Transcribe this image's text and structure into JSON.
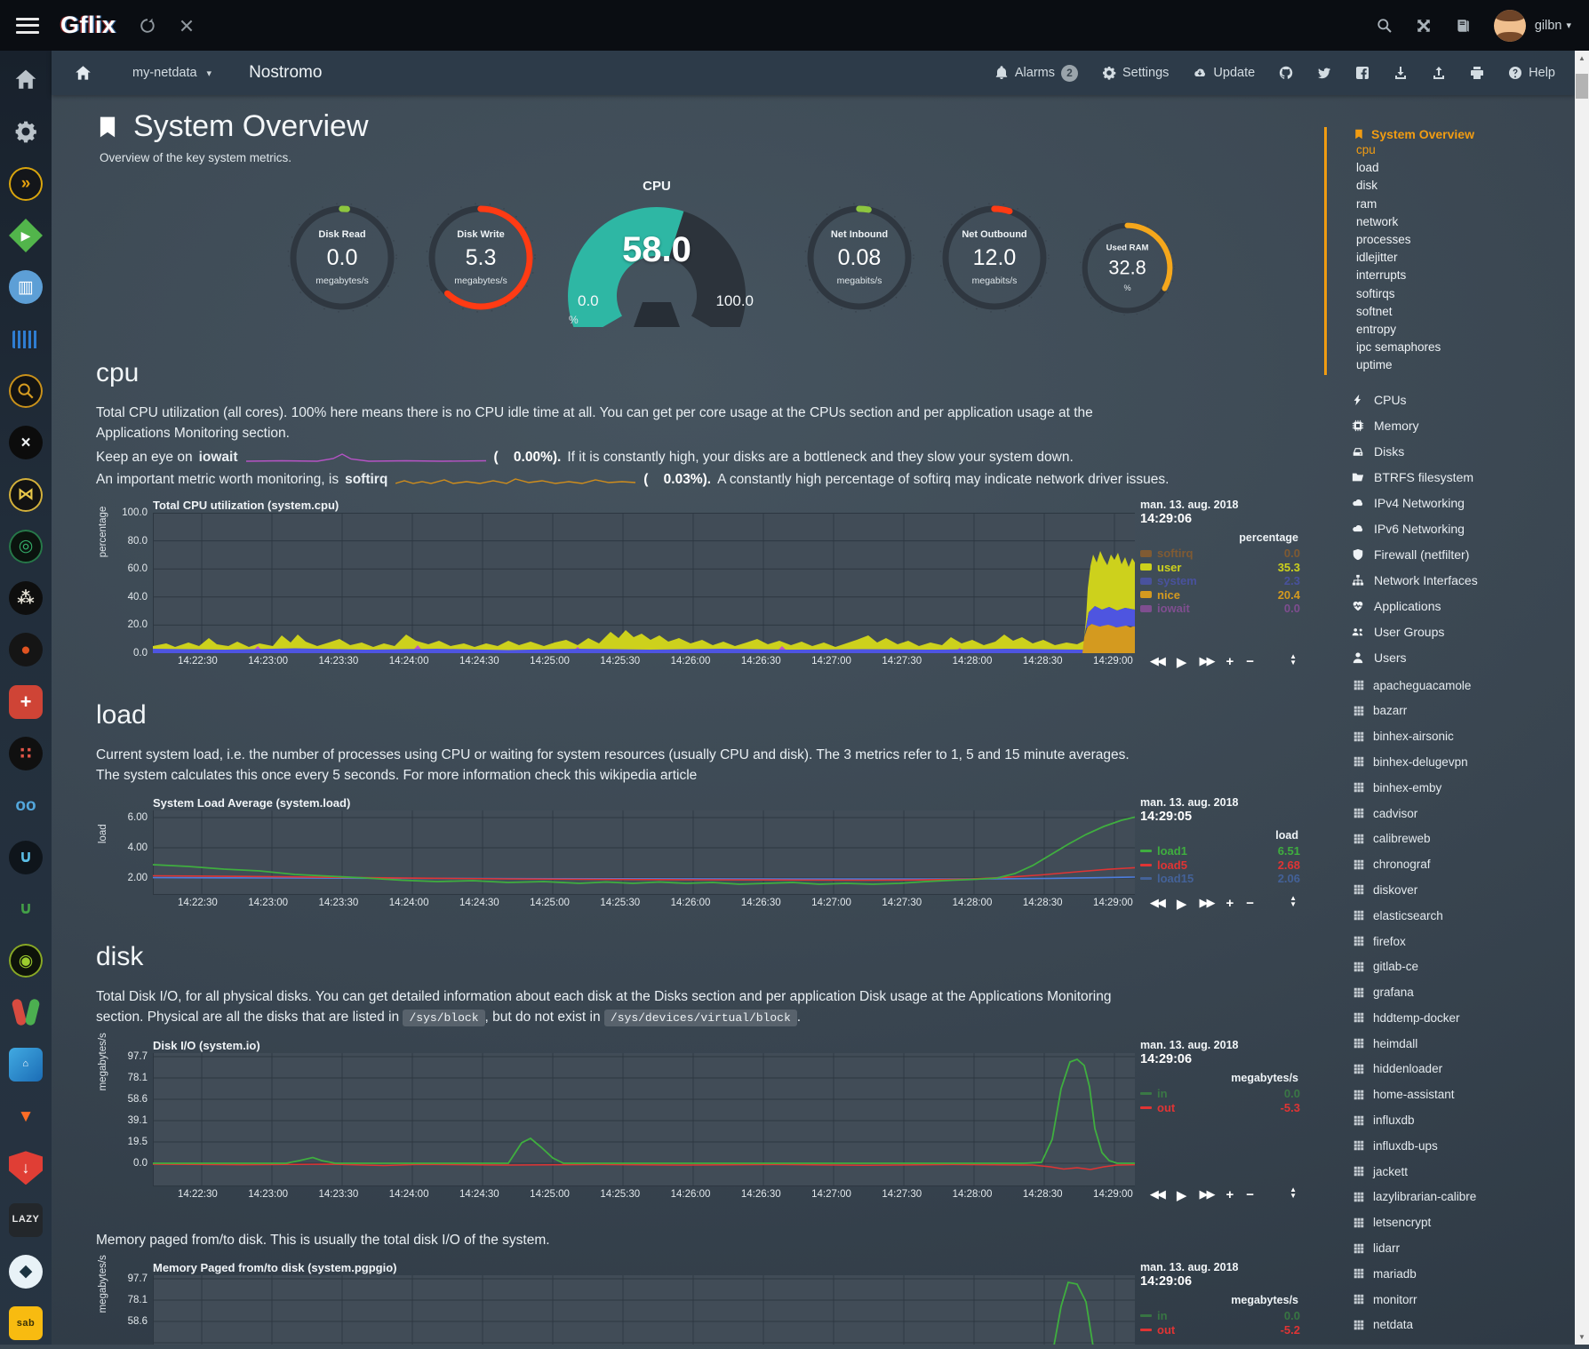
{
  "topbar": {
    "title": "Gflix",
    "user": "gilbn"
  },
  "icons": {
    "topbar": [
      "menu-icon",
      "refresh-icon",
      "close-icon",
      "search-icon",
      "fullscreen-icon",
      "changelog-icon",
      "caret-down-icon"
    ],
    "nd_header": [
      "home-icon",
      "caret-down-icon",
      "bell-icon",
      "gear-icon",
      "cloud-download-icon",
      "github-icon",
      "twitter-icon",
      "facebook-icon",
      "download-icon",
      "upload-icon",
      "print-icon",
      "question-icon"
    ]
  },
  "nd_header": {
    "server": "my-netdata",
    "host": "Nostromo",
    "alarms": "Alarms",
    "alarms_count": "2",
    "settings": "Settings",
    "update": "Update",
    "help": "Help"
  },
  "overview": {
    "title": "System Overview",
    "subtitle": "Overview of the key system metrics."
  },
  "gauges": {
    "items": [
      {
        "label": "Disk Read",
        "value": "0.0",
        "unit": "megabytes/s",
        "arc_color": "#8dc63f",
        "arc_dash": "1.6 98.4"
      },
      {
        "label": "Disk Write",
        "value": "5.3",
        "unit": "megabytes/s",
        "arc_color": "#ff3b14",
        "arc_dash": "62 38"
      },
      {
        "label": "Net Inbound",
        "value": "0.08",
        "unit": "megabits/s",
        "arc_color": "#8dc63f",
        "arc_dash": "3 97"
      },
      {
        "label": "Net Outbound",
        "value": "12.0",
        "unit": "megabits/s",
        "arc_color": "#ff3b14",
        "arc_dash": "5 95"
      },
      {
        "label": "Used RAM",
        "value": "32.8",
        "unit": "%",
        "arc_color": "#f5a71c",
        "arc_dash": "33 67"
      }
    ],
    "cpu": {
      "label": "CPU",
      "value": "58.0",
      "min": "0.0",
      "max": "100.0",
      "unit": "%",
      "fill_color": "#2eb7a4",
      "percent": 58
    }
  },
  "cpu_section": {
    "heading": "cpu",
    "para": "Total CPU utilization (all cores). 100% here means there is no CPU idle time at all. You can get per core usage at the CPUs section and per application usage at the Applications Monitoring section.",
    "iowait_pre": "Keep an eye on",
    "iowait_term": "iowait",
    "iowait_val": "(    0.00%).",
    "iowait_post": "If it is constantly high, your disks are a bottleneck and they slow your system down.",
    "softirq_pre": "An important metric worth monitoring, is",
    "softirq_term": "softirq",
    "softirq_val": "(    0.03%).",
    "softirq_post": "A constantly high percentage of softirq may indicate network driver issues."
  },
  "load_section": {
    "heading": "load",
    "para": "Current system load, i.e. the number of processes using CPU or waiting for system resources (usually CPU and disk). The 3 metrics refer to 1, 5 and 15 minute averages. The system calculates this once every 5 seconds. For more information check this wikipedia article"
  },
  "disk_section": {
    "heading": "disk",
    "para1": "Total Disk I/O, for all physical disks. You can get detailed information about each disk at the Disks section and per application Disk usage at the Applications Monitoring section. Physical are all the disks that are listed in",
    "code1": "/sys/block",
    "para2": ", but do not exist in",
    "code2": "/sys/devices/virtual/block",
    "para3": "."
  },
  "pgpgio_section": {
    "para": "Memory paged from/to disk. This is usually the total disk I/O of the system."
  },
  "x_labels": [
    "14:22:30",
    "14:23:00",
    "14:23:30",
    "14:24:00",
    "14:24:30",
    "14:25:00",
    "14:25:30",
    "14:26:00",
    "14:26:30",
    "14:27:00",
    "14:27:30",
    "14:28:00",
    "14:28:30",
    "14:29:00"
  ],
  "toolbox": {
    "rewind": "◀◀",
    "play": "▶",
    "forward": "▶▶",
    "zoomin": "+",
    "zoomout": "−"
  },
  "charts": [
    {
      "title": "Total CPU utilization (system.cpu)",
      "date": "man. 13. aug. 2018",
      "time": "14:29:06",
      "unit": "percentage",
      "unit_header": "percentage",
      "y_labels": [
        "100.0",
        "80.0",
        "60.0",
        "40.0",
        "20.0",
        "0.0"
      ],
      "legend": [
        {
          "name": "softirq",
          "value": "0.0",
          "color": "#c06a10",
          "dim": true
        },
        {
          "name": "user",
          "value": "35.3",
          "color": "#cdd11c"
        },
        {
          "name": "system",
          "value": "2.3",
          "color": "#5358e2",
          "dim": true
        },
        {
          "name": "nice",
          "value": "20.4",
          "color": "#d49a1f"
        },
        {
          "name": "iowait",
          "value": "0.0",
          "color": "#bf51c9",
          "dim": true
        }
      ]
    },
    {
      "title": "System Load Average (system.load)",
      "date": "man. 13. aug. 2018",
      "time": "14:29:05",
      "unit": "load",
      "unit_header": "load",
      "y_labels": [
        "6.00",
        "4.00",
        "2.00"
      ],
      "legend": [
        {
          "name": "load1",
          "value": "6.51",
          "color": "#3fae3f"
        },
        {
          "name": "load5",
          "value": "2.68",
          "color": "#e03434"
        },
        {
          "name": "load15",
          "value": "2.06",
          "color": "#4d7dde",
          "dim": true
        }
      ]
    },
    {
      "title": "Disk I/O (system.io)",
      "date": "man. 13. aug. 2018",
      "time": "14:29:06",
      "unit": "megabytes/s",
      "unit_header": "megabytes/s",
      "y_labels": [
        "97.7",
        "78.1",
        "58.6",
        "39.1",
        "19.5",
        "0.0"
      ],
      "legend": [
        {
          "name": "in",
          "value": "0.0",
          "color": "#3fae3f",
          "dim": true
        },
        {
          "name": "out",
          "value": "-5.3",
          "color": "#e03434"
        }
      ]
    },
    {
      "title": "Memory Paged from/to disk (system.pgpgio)",
      "date": "man. 13. aug. 2018",
      "time": "14:29:06",
      "unit": "megabytes/s",
      "unit_header": "megabytes/s",
      "y_labels": [
        "97.7",
        "78.1",
        "58.6"
      ],
      "legend": [
        {
          "name": "in",
          "value": "0.0",
          "color": "#3fae3f",
          "dim": true
        },
        {
          "name": "out",
          "value": "-5.2",
          "color": "#e03434"
        }
      ]
    }
  ],
  "chart_data": [
    {
      "type": "area",
      "title": "Total CPU utilization (system.cpu)",
      "ylabel": "percentage",
      "ylim": [
        0,
        100
      ],
      "x": [
        "14:22:30",
        "14:29:00"
      ],
      "series": [
        {
          "name": "softirq",
          "now": 0.0
        },
        {
          "name": "user",
          "now": 35.3
        },
        {
          "name": "system",
          "now": 2.3
        },
        {
          "name": "nice",
          "now": 20.4
        },
        {
          "name": "iowait",
          "now": 0.0
        }
      ],
      "shape_note": "user ~3-12% with small spikes until 14:28:35, then stacked burst user+nice+system ~75% until 14:29:06"
    },
    {
      "type": "line",
      "title": "System Load Average (system.load)",
      "ylabel": "load",
      "ylim": [
        1,
        6.6
      ],
      "series": [
        {
          "name": "load1",
          "now": 6.51
        },
        {
          "name": "load5",
          "now": 2.68
        },
        {
          "name": "load15",
          "now": 2.06
        }
      ],
      "shape_note": "load1 declines 2.9→1.5 then spikes to 6.51 at right edge; load5/load15 near 2"
    },
    {
      "type": "line",
      "title": "Disk I/O (system.io)",
      "ylabel": "megabytes/s",
      "ylim": [
        -20,
        97.7
      ],
      "series": [
        {
          "name": "in",
          "now": 0.0
        },
        {
          "name": "out",
          "now": -5.3
        }
      ],
      "shape_note": "in flat ~0 with spike to ~95 MB/s at 14:28:30; out slightly negative"
    },
    {
      "type": "line",
      "title": "Memory Paged from/to disk (system.pgpgio)",
      "ylabel": "megabytes/s",
      "ylim": [
        -20,
        97.7
      ],
      "series": [
        {
          "name": "in",
          "now": 0.0
        },
        {
          "name": "out",
          "now": -5.2
        }
      ],
      "shape_note": "same spike at 14:28:30, chart cut off at page bottom"
    }
  ],
  "right_sidebar": {
    "overview_label": "System Overview",
    "overview_items": [
      {
        "label": "cpu",
        "active": true
      },
      {
        "label": "load"
      },
      {
        "label": "disk"
      },
      {
        "label": "ram"
      },
      {
        "label": "network"
      },
      {
        "label": "processes"
      },
      {
        "label": "idlejitter"
      },
      {
        "label": "interrupts"
      },
      {
        "label": "softirqs"
      },
      {
        "label": "softnet"
      },
      {
        "label": "entropy"
      },
      {
        "label": "ipc semaphores"
      },
      {
        "label": "uptime"
      }
    ],
    "sections": [
      {
        "icon": "bolt",
        "label": "CPUs"
      },
      {
        "icon": "memory",
        "label": "Memory"
      },
      {
        "icon": "hdd",
        "label": "Disks"
      },
      {
        "icon": "folder",
        "label": "BTRFS filesystem"
      },
      {
        "icon": "cloud",
        "label": "IPv4 Networking"
      },
      {
        "icon": "cloud",
        "label": "IPv6 Networking"
      },
      {
        "icon": "shield",
        "label": "Firewall (netfilter)"
      },
      {
        "icon": "sitemap",
        "label": "Network Interfaces"
      },
      {
        "icon": "heartbeat",
        "label": "Applications"
      },
      {
        "icon": "users",
        "label": "User Groups"
      },
      {
        "icon": "user",
        "label": "Users"
      }
    ],
    "apps": [
      {
        "icon": "grid",
        "label": "apacheguacamole"
      },
      {
        "icon": "grid",
        "label": "bazarr"
      },
      {
        "icon": "grid",
        "label": "binhex-airsonic"
      },
      {
        "icon": "grid",
        "label": "binhex-delugevpn"
      },
      {
        "icon": "grid",
        "label": "binhex-emby"
      },
      {
        "icon": "grid",
        "label": "cadvisor"
      },
      {
        "icon": "grid",
        "label": "calibreweb"
      },
      {
        "icon": "grid",
        "label": "chronograf"
      },
      {
        "icon": "grid",
        "label": "diskover"
      },
      {
        "icon": "grid",
        "label": "elasticsearch"
      },
      {
        "icon": "grid",
        "label": "firefox"
      },
      {
        "icon": "grid",
        "label": "gitlab-ce"
      },
      {
        "icon": "grid",
        "label": "grafana"
      },
      {
        "icon": "grid",
        "label": "hddtemp-docker"
      },
      {
        "icon": "grid",
        "label": "heimdall"
      },
      {
        "icon": "grid",
        "label": "hiddenloader"
      },
      {
        "icon": "grid",
        "label": "home-assistant"
      },
      {
        "icon": "grid",
        "label": "influxdb"
      },
      {
        "icon": "grid",
        "label": "influxdb-ups"
      },
      {
        "icon": "grid",
        "label": "jackett"
      },
      {
        "icon": "grid",
        "label": "lazylibrarian-calibre"
      },
      {
        "icon": "grid",
        "label": "letsencrypt"
      },
      {
        "icon": "grid",
        "label": "lidarr"
      },
      {
        "icon": "grid",
        "label": "mariadb"
      },
      {
        "icon": "grid",
        "label": "monitorr"
      },
      {
        "icon": "grid",
        "label": "netdata"
      }
    ]
  },
  "left_sidebar": {
    "apps": [
      {
        "name": "home",
        "shape": "plain",
        "icon": "home",
        "fg": "#b9c2c9"
      },
      {
        "name": "settings-gear",
        "shape": "plain",
        "icon": "gear",
        "fg": "#b9c2c9"
      },
      {
        "name": "tautulli",
        "shape": "circle",
        "bg": "#14161a",
        "border": "#d9a50e",
        "glyph": "»",
        "fg": "#e5a00d"
      },
      {
        "name": "emby",
        "shape": "diamond",
        "bg": "#52b54b",
        "glyph": "▶",
        "fg": "#ffffff"
      },
      {
        "name": "media-library",
        "shape": "circle",
        "bg": "#5d9fd6",
        "glyph": "▥",
        "fg": "#ffffff"
      },
      {
        "name": "airsonic-waves",
        "shape": "bars",
        "fg": "#2f7dd1"
      },
      {
        "name": "jackett-magnifier",
        "shape": "circle",
        "bg": "#131313",
        "border": "#c9921c",
        "icon": "search",
        "fg": "#d79c20"
      },
      {
        "name": "x-app",
        "shape": "circle",
        "bg": "#0c0c0c",
        "glyph": "×",
        "fg": "#f0f3f5"
      },
      {
        "name": "bowtie-app",
        "shape": "circle",
        "bg": "#121212",
        "border": "#d3b13c",
        "glyph": "⋈",
        "fg": "#e8c84a"
      },
      {
        "name": "green-swirl-app",
        "shape": "circle",
        "bg": "#0b130e",
        "border": "#27784a",
        "glyph": "◎",
        "fg": "#35b06b"
      },
      {
        "name": "share-nodes-app",
        "shape": "circle",
        "bg": "#0e0e0e",
        "glyph": "⁂",
        "fg": "#e8e4d8"
      },
      {
        "name": "orange-dot-app",
        "shape": "circle",
        "bg": "#151515",
        "glyph": "●",
        "fg": "#df5321"
      },
      {
        "name": "red-key-app",
        "shape": "rsquare",
        "bg": "#cf4436",
        "glyph": "+",
        "fg": "#ffffff"
      },
      {
        "name": "red-dots-app",
        "shape": "circle",
        "bg": "#101010",
        "glyph": "∷",
        "fg": "#e05548"
      },
      {
        "name": "double-o-app",
        "shape": "plain",
        "label": "oo",
        "fg": "#53a7dc"
      },
      {
        "name": "blue-u-app",
        "shape": "circle",
        "bg": "#0f151b",
        "glyph": "∪",
        "fg": "#5bbde4"
      },
      {
        "name": "green-u-app",
        "shape": "plain",
        "glyph": "∪",
        "fg": "#43a047"
      },
      {
        "name": "green-ring-app",
        "shape": "circle",
        "bg": "#0e130a",
        "border": "#88a827",
        "glyph": "◉",
        "fg": "#9ccc2e"
      },
      {
        "name": "pills-app",
        "shape": "pills"
      },
      {
        "name": "heimdall-house",
        "shape": "tile",
        "bg": "linear-gradient(135deg,#41aae2,#1b6cb5)",
        "glyph": "⌂",
        "fg": "#ffffff"
      },
      {
        "name": "gitlab-fox",
        "shape": "plain",
        "glyph": "▼",
        "fg": "#fc6d26"
      },
      {
        "name": "red-shield-app",
        "shape": "shield",
        "bg": "#e03e35",
        "glyph": "↓",
        "fg": "#ffffff"
      },
      {
        "name": "lazylibrarian",
        "shape": "tile",
        "bg": "#23272b",
        "label": "LAZY",
        "fg": "#e8e8e8"
      },
      {
        "name": "influxdb-drop",
        "shape": "circle",
        "bg": "#e8f2f7",
        "glyph": "◆",
        "fg": "#1b3340"
      },
      {
        "name": "sabnzbd",
        "shape": "tile",
        "bg": "#f8bb10",
        "label": "sab",
        "fg": "#3a3208"
      }
    ]
  }
}
